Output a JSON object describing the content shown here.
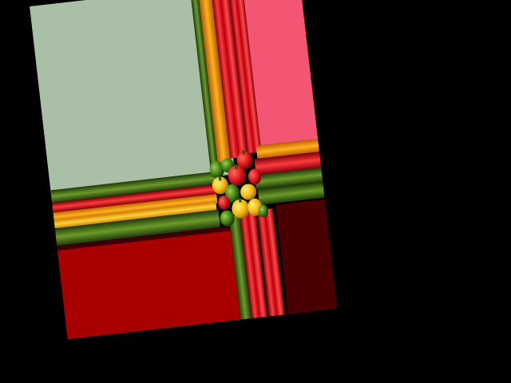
{
  "scene": {
    "background_color": "#000000",
    "subject": "peppers-cluster",
    "palette": {
      "panel_top_left": "#a9bfa6",
      "panel_top_right": "#f25672",
      "panel_bottom_left": "#a80000",
      "panel_bottom_right": "#4a0000",
      "stripe_red": "#d4111b",
      "stripe_green": "#3f6a14",
      "stripe_orange": "#f28a00",
      "stripe_yellow": "#f5b400",
      "pepper_red": "#d9141c",
      "pepper_green": "#3e7a12",
      "pepper_yellow": "#f2b705"
    }
  }
}
